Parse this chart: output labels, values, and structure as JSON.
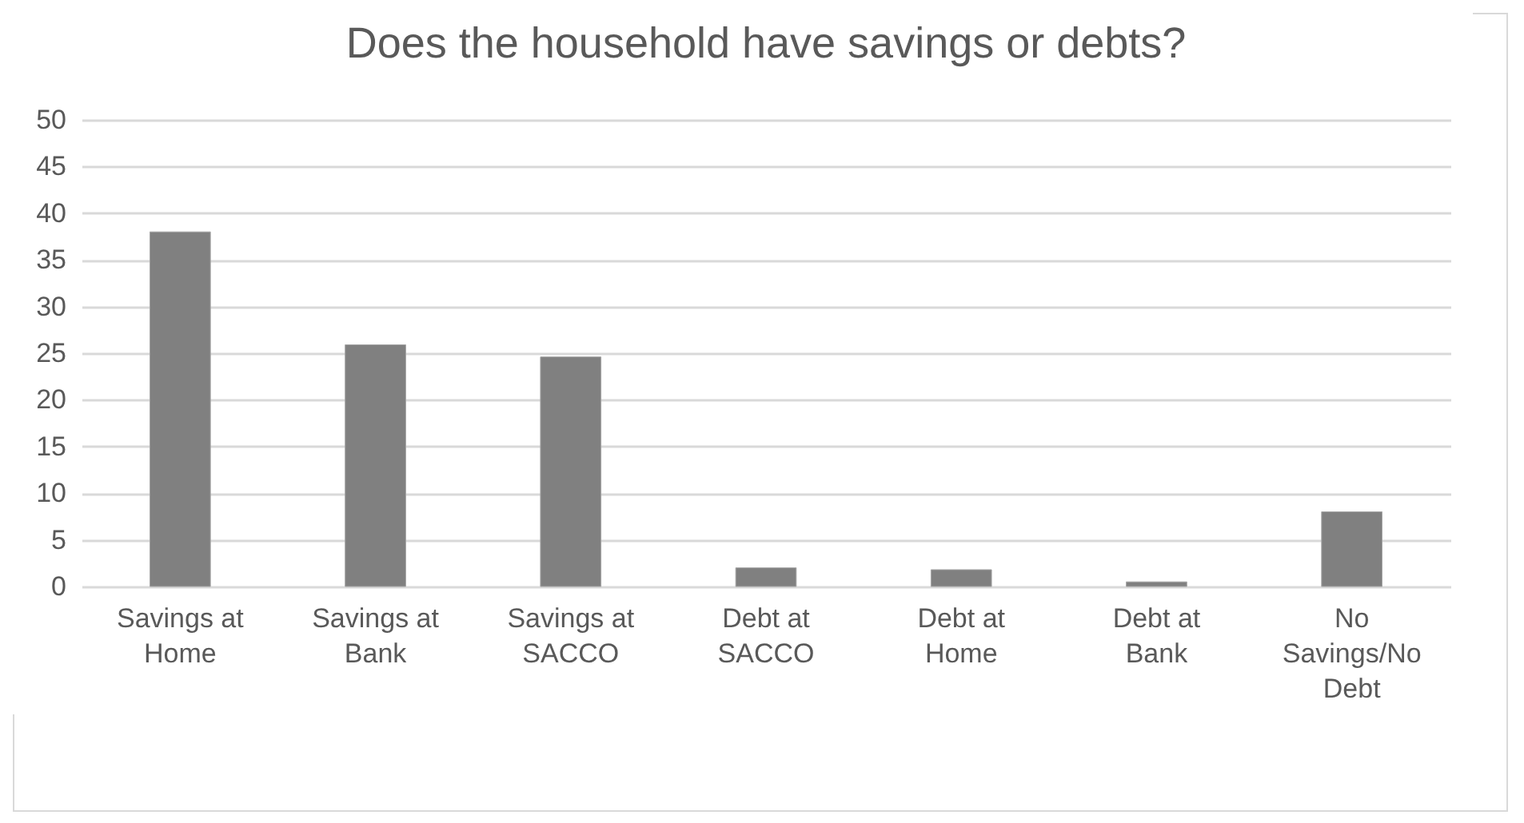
{
  "chart_data": {
    "type": "bar",
    "title": "Does the household have savings or debts?",
    "categories": [
      "Savings at Home",
      "Savings at Bank",
      "Savings at SACCO",
      "Debt at SACCO",
      "Debt at Home",
      "Debt at Bank",
      "No Savings/No Debt"
    ],
    "values": [
      38.0,
      25.9,
      24.6,
      2.0,
      1.8,
      0.5,
      8.0
    ],
    "color": "#808080",
    "ylim": [
      0,
      50
    ],
    "yticks": [
      0,
      5,
      10,
      15,
      20,
      25,
      30,
      35,
      40,
      45,
      50
    ],
    "grid": "y"
  }
}
